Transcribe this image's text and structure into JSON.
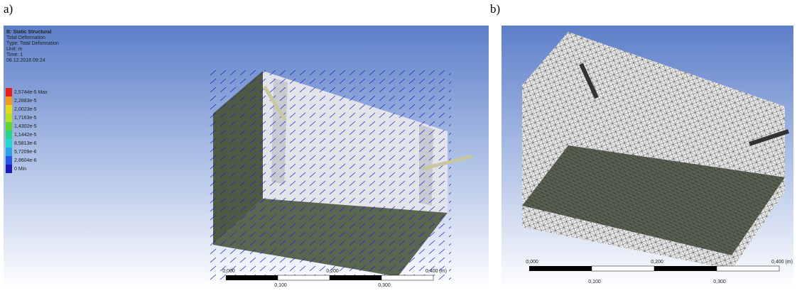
{
  "panel_a": {
    "label": "a)",
    "info": [
      "B: Static Structural",
      "Total Deformation",
      "Type: Total Deformation",
      "Unit: m",
      "Time: 1",
      "06.12.2018 09:24"
    ],
    "legend": [
      "2,5744e-5 Max",
      "2,2883e-5",
      "2,0023e-5",
      "1,7163e-5",
      "1,4302e-5",
      "1,1442e-5",
      "8,5813e-6",
      "5,7209e-6",
      "2,8604e-6",
      "0 Min"
    ],
    "scale_top": [
      "0,000",
      "0,200",
      "0,400 (m)"
    ],
    "scale_bottom": [
      "0,100",
      "0,300"
    ]
  },
  "panel_b": {
    "label": "b)",
    "scale_top": [
      "0,000",
      "0,200",
      "0,400 (m)"
    ],
    "scale_bottom": [
      "0,100",
      "0,300"
    ]
  }
}
